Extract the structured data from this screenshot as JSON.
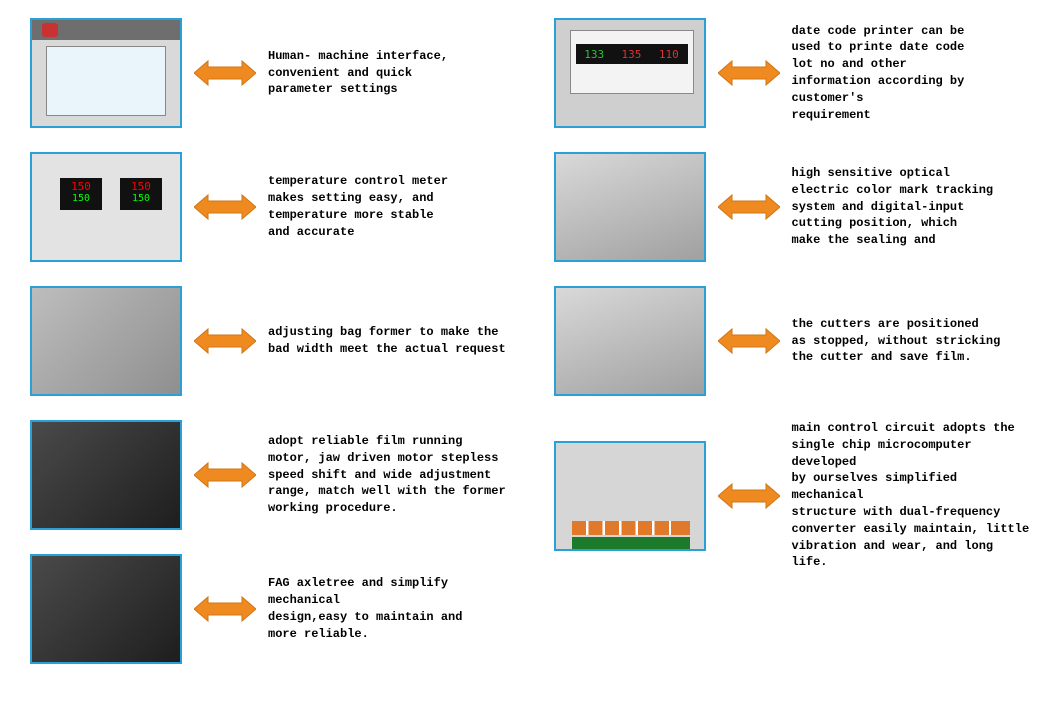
{
  "arrow_color": "#ee8a1f",
  "arrow_stroke": "#d17515",
  "border_color": "#2aa0d5",
  "left": [
    {
      "kind": "hmi",
      "text": "Human- machine interface,\nconvenient and quick\nparameter settings"
    },
    {
      "kind": "tcm",
      "display_top": "150",
      "display_bottom": "150",
      "text": "temperature control meter\nmakes setting easy, and\ntemperature more stable\nand accurate"
    },
    {
      "kind": "generic",
      "text": "adjusting bag former to make the\nbad width meet the actual request"
    },
    {
      "kind": "dark",
      "text": "adopt reliable film running\nmotor, jaw driven motor stepless\n speed shift and wide adjustment\nrange, match well with the former\nworking procedure."
    },
    {
      "kind": "dark",
      "text": "FAG axletree and simplify mechanical\ndesign,easy to maintain and\nmore reliable."
    }
  ],
  "right": [
    {
      "kind": "dcp",
      "lcd": [
        "133",
        "135",
        "110"
      ],
      "lcd_colors": [
        "#2fbf3a",
        "#e03030",
        "#e03030"
      ],
      "text": "date code printer can be\nused to printe date code\nlot no and other\ninformation according by customer's\nrequirement"
    },
    {
      "kind": "generic2",
      "text": "high sensitive optical\nelectric color mark tracking\nsystem and digital-input\ncutting position, which\nmake the sealing and"
    },
    {
      "kind": "generic2",
      "text": "the cutters are positioned\nas stopped, without stricking\nthe cutter and save film."
    },
    {
      "kind": "circuit",
      "text": "main control circuit adopts the\nsingle chip microcomputer developed\nby ourselves simplified mechanical\nstructure with dual-frequency\nconverter easily maintain, little\nvibration and wear, and long life."
    }
  ]
}
